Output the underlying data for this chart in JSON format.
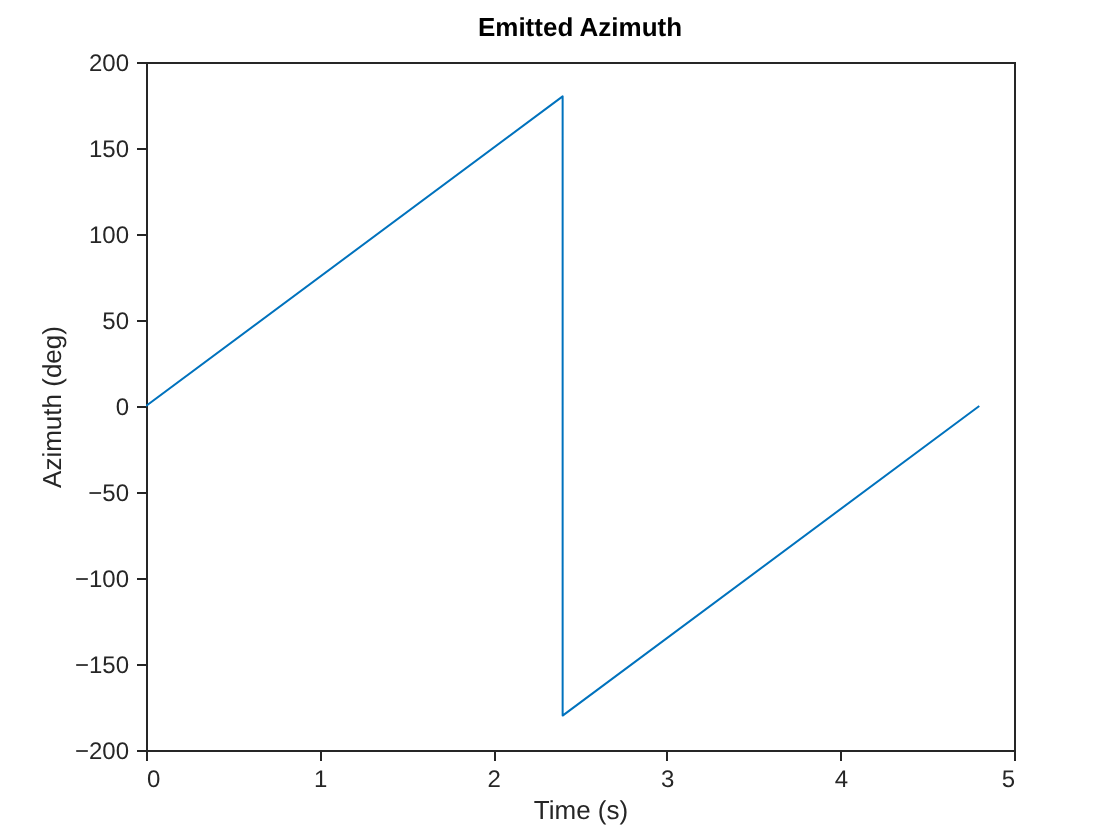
{
  "chart_data": {
    "type": "line",
    "title": "Emitted Azimuth",
    "xlabel": "Time (s)",
    "ylabel": "Azimuth (deg)",
    "x": [
      0,
      2.4,
      2.4,
      4.8
    ],
    "series": [
      {
        "color": "#0072bd",
        "values": [
          0,
          180,
          -180,
          0
        ]
      }
    ],
    "xlim": [
      0,
      5
    ],
    "xticks": [
      0,
      1,
      2,
      3,
      4,
      5
    ],
    "ylim": [
      -200,
      200
    ],
    "yticks": [
      -200,
      -150,
      -100,
      -50,
      0,
      50,
      100,
      150,
      200
    ],
    "grid": false
  }
}
